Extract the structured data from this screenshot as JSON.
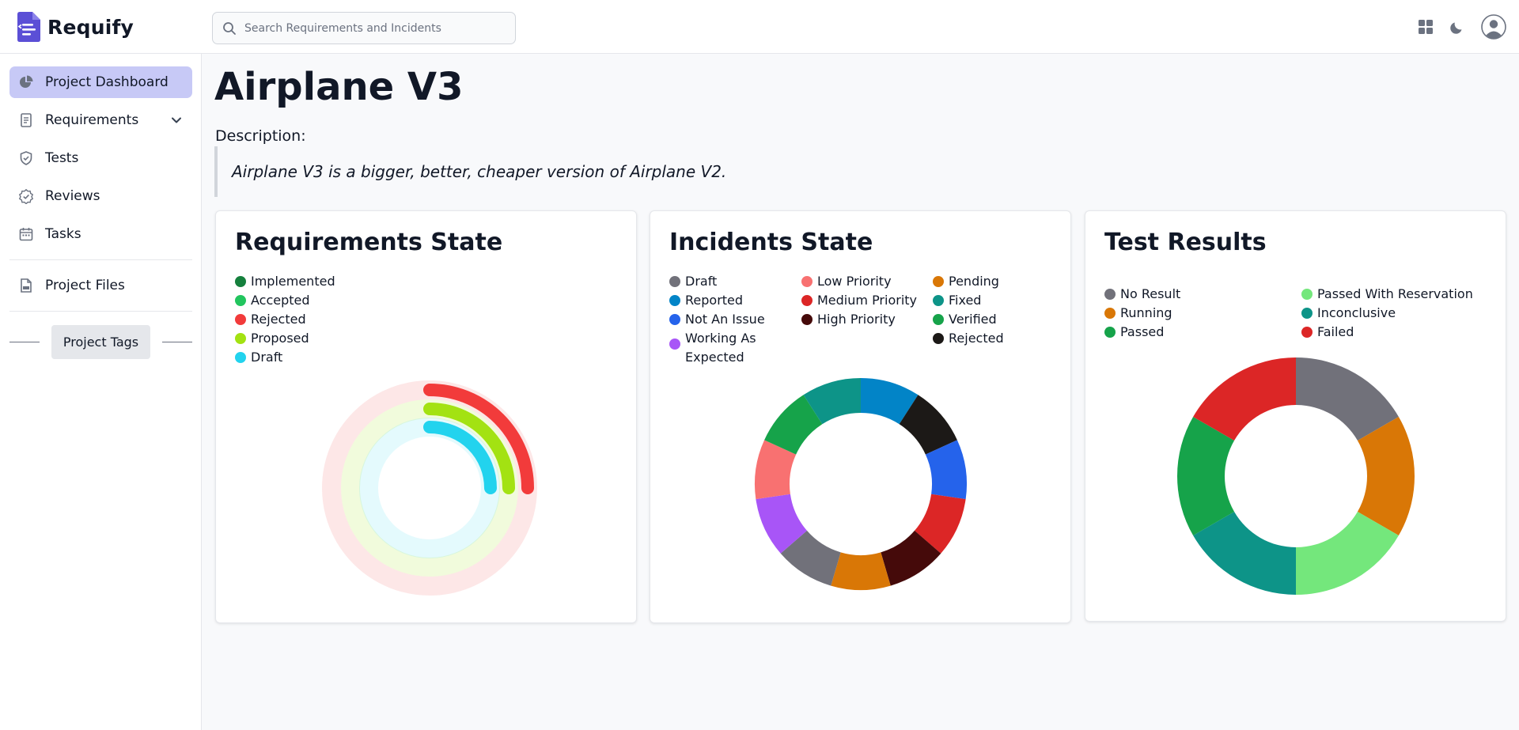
{
  "app": {
    "name": "Requify"
  },
  "search": {
    "placeholder": "Search Requirements and Incidents"
  },
  "sidebar": {
    "items": [
      {
        "label": "Project Dashboard"
      },
      {
        "label": "Requirements"
      },
      {
        "label": "Tests"
      },
      {
        "label": "Reviews"
      },
      {
        "label": "Tasks"
      },
      {
        "label": "Project Files"
      }
    ],
    "tags_label": "Project Tags"
  },
  "project": {
    "title": "Airplane V3",
    "description_label": "Description:",
    "description": "Airplane V3 is a bigger, better, cheaper version of Airplane V2."
  },
  "colors": {
    "accent": "#c7c9f6",
    "brand": "#5b4fd6"
  },
  "chart_data": [
    {
      "type": "radial-bar",
      "title": "Requirements State",
      "series": [
        {
          "name": "Implemented",
          "color": "#15803d",
          "value": 0
        },
        {
          "name": "Accepted",
          "color": "#22c55e",
          "value": 0
        },
        {
          "name": "Rejected",
          "color": "#f23b3b",
          "value": 25
        },
        {
          "name": "Proposed",
          "color": "#a3e212",
          "value": 25
        },
        {
          "name": "Draft",
          "color": "#22d3ee",
          "value": 25
        }
      ]
    },
    {
      "type": "pie",
      "title": "Incidents State",
      "series": [
        {
          "name": "Draft",
          "color": "#71717a"
        },
        {
          "name": "Reported",
          "color": "#0284c7"
        },
        {
          "name": "Not An Issue",
          "color": "#2563eb"
        },
        {
          "name": "Working As Expected",
          "color": "#a855f7"
        },
        {
          "name": "Low Priority",
          "color": "#f87171"
        },
        {
          "name": "Medium Priority",
          "color": "#dc2626"
        },
        {
          "name": "High Priority",
          "color": "#450a0a"
        },
        {
          "name": "Pending",
          "color": "#d97706"
        },
        {
          "name": "Fixed",
          "color": "#0d9488"
        },
        {
          "name": "Verified",
          "color": "#16a34a"
        },
        {
          "name": "Rejected",
          "color": "#1c1917"
        }
      ],
      "slices": [
        {
          "name": "Reported",
          "value": 1
        },
        {
          "name": "Rejected",
          "value": 1
        },
        {
          "name": "Not An Issue",
          "value": 1
        },
        {
          "name": "Medium Priority",
          "value": 1
        },
        {
          "name": "High Priority",
          "value": 1
        },
        {
          "name": "Pending",
          "value": 1
        },
        {
          "name": "Draft",
          "value": 1
        },
        {
          "name": "Working As Expected",
          "value": 1
        },
        {
          "name": "Low Priority",
          "value": 1
        },
        {
          "name": "Verified",
          "value": 1
        },
        {
          "name": "Fixed",
          "value": 1
        }
      ]
    },
    {
      "type": "pie",
      "title": "Test Results",
      "series": [
        {
          "name": "No Result",
          "color": "#71717a"
        },
        {
          "name": "Running",
          "color": "#d97706"
        },
        {
          "name": "Passed",
          "color": "#16a34a"
        },
        {
          "name": "Passed With Reservation",
          "color": "#74e77c"
        },
        {
          "name": "Inconclusive",
          "color": "#0d9488"
        },
        {
          "name": "Failed",
          "color": "#dc2626"
        }
      ],
      "slices": [
        {
          "name": "No Result",
          "value": 1
        },
        {
          "name": "Running",
          "value": 1
        },
        {
          "name": "Passed With Reservation",
          "value": 1
        },
        {
          "name": "Inconclusive",
          "value": 1
        },
        {
          "name": "Passed",
          "value": 1
        },
        {
          "name": "Failed",
          "value": 1
        }
      ]
    }
  ]
}
